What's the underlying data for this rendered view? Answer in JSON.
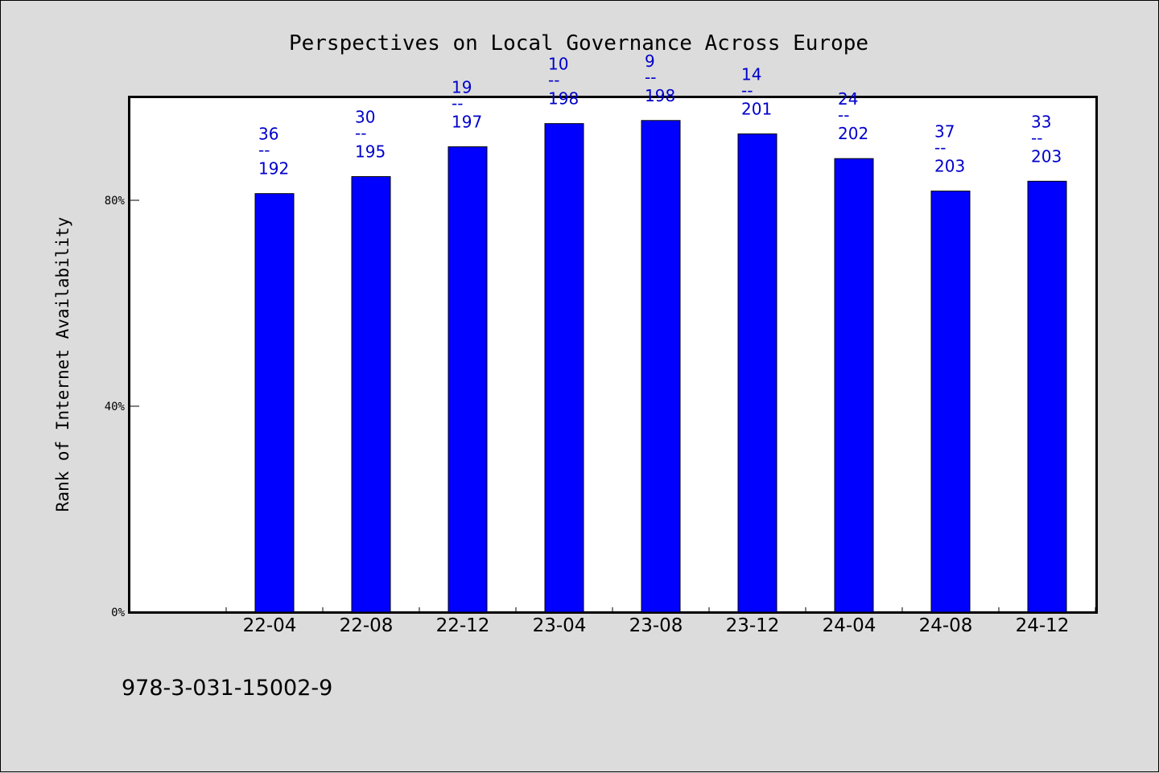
{
  "chart_data": {
    "type": "bar",
    "title": "Perspectives on Local Governance Across Europe",
    "xlabel": "",
    "ylabel": "Rank of Internet Availability",
    "categories": [
      "22-04",
      "22-08",
      "22-12",
      "23-04",
      "23-08",
      "23-12",
      "24-04",
      "24-08",
      "24-12"
    ],
    "values": [
      81.3,
      84.6,
      90.4,
      94.9,
      95.5,
      92.9,
      88.1,
      81.8,
      83.7
    ],
    "bar_labels": [
      {
        "rank": "36",
        "sep": "--",
        "total": "192"
      },
      {
        "rank": "30",
        "sep": "--",
        "total": "195"
      },
      {
        "rank": "19",
        "sep": "--",
        "total": "197"
      },
      {
        "rank": "10",
        "sep": "--",
        "total": "198"
      },
      {
        "rank": "9",
        "sep": "--",
        "total": "198"
      },
      {
        "rank": "14",
        "sep": "--",
        "total": "201"
      },
      {
        "rank": "24",
        "sep": "--",
        "total": "202"
      },
      {
        "rank": "37",
        "sep": "--",
        "total": "203"
      },
      {
        "rank": "33",
        "sep": "--",
        "total": "203"
      }
    ],
    "yticks": [
      {
        "value": 0,
        "label": "0%"
      },
      {
        "value": 40,
        "label": "40%"
      },
      {
        "value": 80,
        "label": "80%"
      }
    ],
    "ylim": [
      0,
      100
    ],
    "grid": false,
    "legend": "none",
    "bar_color": "#0000ff",
    "label_color": "#0000cc",
    "plot_background": "#ffffff",
    "page_background": "#dcdcdc"
  },
  "footer": {
    "isbn": "978-3-031-15002-9"
  }
}
